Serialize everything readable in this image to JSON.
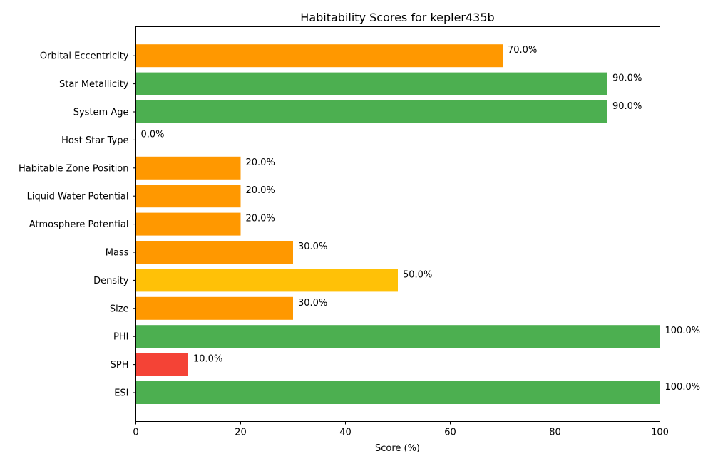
{
  "chart_data": {
    "type": "bar",
    "orientation": "horizontal",
    "title": "Habitability Scores for kepler435b",
    "xlabel": "Score (%)",
    "ylabel": "",
    "xlim": [
      0,
      100
    ],
    "xticks": [
      0,
      20,
      40,
      60,
      80,
      100
    ],
    "grid": false,
    "categories": [
      "ESI",
      "SPH",
      "PHI",
      "Size",
      "Density",
      "Mass",
      "Atmosphere Potential",
      "Liquid Water Potential",
      "Habitable Zone Position",
      "Host Star Type",
      "System Age",
      "Star Metallicity",
      "Orbital Eccentricity"
    ],
    "values": [
      100,
      10,
      100,
      30,
      50,
      30,
      20,
      20,
      20,
      0,
      90,
      90,
      70
    ],
    "value_labels": [
      "100.0%",
      "10.0%",
      "100.0%",
      "30.0%",
      "50.0%",
      "30.0%",
      "20.0%",
      "20.0%",
      "20.0%",
      "0.0%",
      "90.0%",
      "90.0%",
      "70.0%"
    ],
    "bar_colors": [
      "#4caf50",
      "#f44336",
      "#4caf50",
      "#ff9800",
      "#ffc107",
      "#ff9800",
      "#ff9800",
      "#ff9800",
      "#ff9800",
      "#ff9800",
      "#4caf50",
      "#4caf50",
      "#ff9800"
    ]
  }
}
